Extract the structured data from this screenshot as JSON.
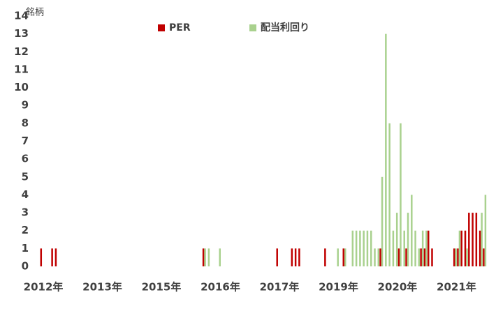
{
  "chart_data": {
    "type": "bar",
    "y_label": "銘柄",
    "categories": [
      "2012年",
      null,
      null,
      null,
      null,
      null,
      null,
      null,
      null,
      null,
      null,
      null,
      null,
      null,
      null,
      null,
      "2013年",
      null,
      null,
      null,
      null,
      null,
      null,
      null,
      null,
      null,
      null,
      null,
      null,
      null,
      null,
      null,
      "2015年",
      null,
      null,
      null,
      null,
      null,
      null,
      null,
      null,
      null,
      null,
      null,
      null,
      null,
      null,
      null,
      "2016年",
      null,
      null,
      null,
      null,
      null,
      null,
      null,
      null,
      null,
      null,
      null,
      null,
      null,
      null,
      null,
      "2017年",
      null,
      null,
      null,
      null,
      null,
      null,
      null,
      null,
      null,
      null,
      null,
      null,
      null,
      null,
      null,
      "2019年",
      null,
      null,
      null,
      null,
      null,
      null,
      null,
      null,
      null,
      null,
      null,
      null,
      null,
      null,
      null,
      "2020年",
      null,
      null,
      null,
      null,
      null,
      null,
      null,
      null,
      null,
      null,
      null,
      null,
      null,
      null,
      null,
      "2021年",
      null,
      null,
      null,
      null,
      null,
      null,
      null,
      null
    ],
    "series": [
      {
        "name": "PER",
        "color": "#c00000",
        "values": [
          1,
          0,
          0,
          1,
          1,
          0,
          0,
          0,
          0,
          0,
          0,
          0,
          0,
          0,
          0,
          0,
          0,
          0,
          0,
          0,
          0,
          0,
          0,
          0,
          0,
          0,
          0,
          0,
          0,
          0,
          0,
          0,
          0,
          0,
          0,
          0,
          0,
          0,
          0,
          0,
          0,
          0,
          0,
          0,
          1,
          0,
          0,
          0,
          0,
          0,
          0,
          0,
          0,
          0,
          0,
          0,
          0,
          0,
          0,
          0,
          0,
          0,
          0,
          0,
          1,
          0,
          0,
          0,
          1,
          1,
          1,
          0,
          0,
          0,
          0,
          0,
          0,
          1,
          0,
          0,
          0,
          0,
          1,
          0,
          0,
          0,
          0,
          0,
          0,
          0,
          0,
          0,
          1,
          0,
          0,
          0,
          0,
          1,
          0,
          1,
          0,
          0,
          0,
          1,
          1,
          2,
          1,
          0,
          0,
          0,
          0,
          0,
          1,
          1,
          2,
          2,
          3,
          3,
          3,
          2,
          1
        ]
      },
      {
        "name": "配当利回り",
        "color": "#a9d18e",
        "values": [
          0,
          0,
          0,
          0,
          0,
          0,
          0,
          0,
          0,
          0,
          0,
          0,
          0,
          0,
          0,
          0,
          0,
          0,
          0,
          0,
          0,
          0,
          0,
          0,
          0,
          0,
          0,
          0,
          0,
          0,
          0,
          0,
          0,
          0,
          0,
          0,
          0,
          0,
          0,
          0,
          0,
          0,
          0,
          0,
          1,
          1,
          0,
          0,
          1,
          0,
          0,
          0,
          0,
          0,
          0,
          0,
          0,
          0,
          0,
          0,
          0,
          0,
          0,
          0,
          0,
          0,
          0,
          0,
          0,
          0,
          0,
          0,
          0,
          0,
          0,
          0,
          0,
          0,
          0,
          0,
          1,
          0,
          1,
          0,
          2,
          2,
          2,
          2,
          2,
          2,
          1,
          1,
          5,
          13,
          8,
          2,
          3,
          8,
          2,
          3,
          4,
          2,
          1,
          2,
          2,
          0,
          0,
          0,
          0,
          0,
          0,
          0,
          1,
          2,
          0,
          1,
          0,
          0,
          0,
          3,
          4
        ]
      }
    ],
    "ylim": [
      0,
      14
    ],
    "yticks": [
      0,
      1,
      2,
      3,
      4,
      5,
      6,
      7,
      8,
      9,
      10,
      11,
      12,
      13,
      14
    ]
  }
}
